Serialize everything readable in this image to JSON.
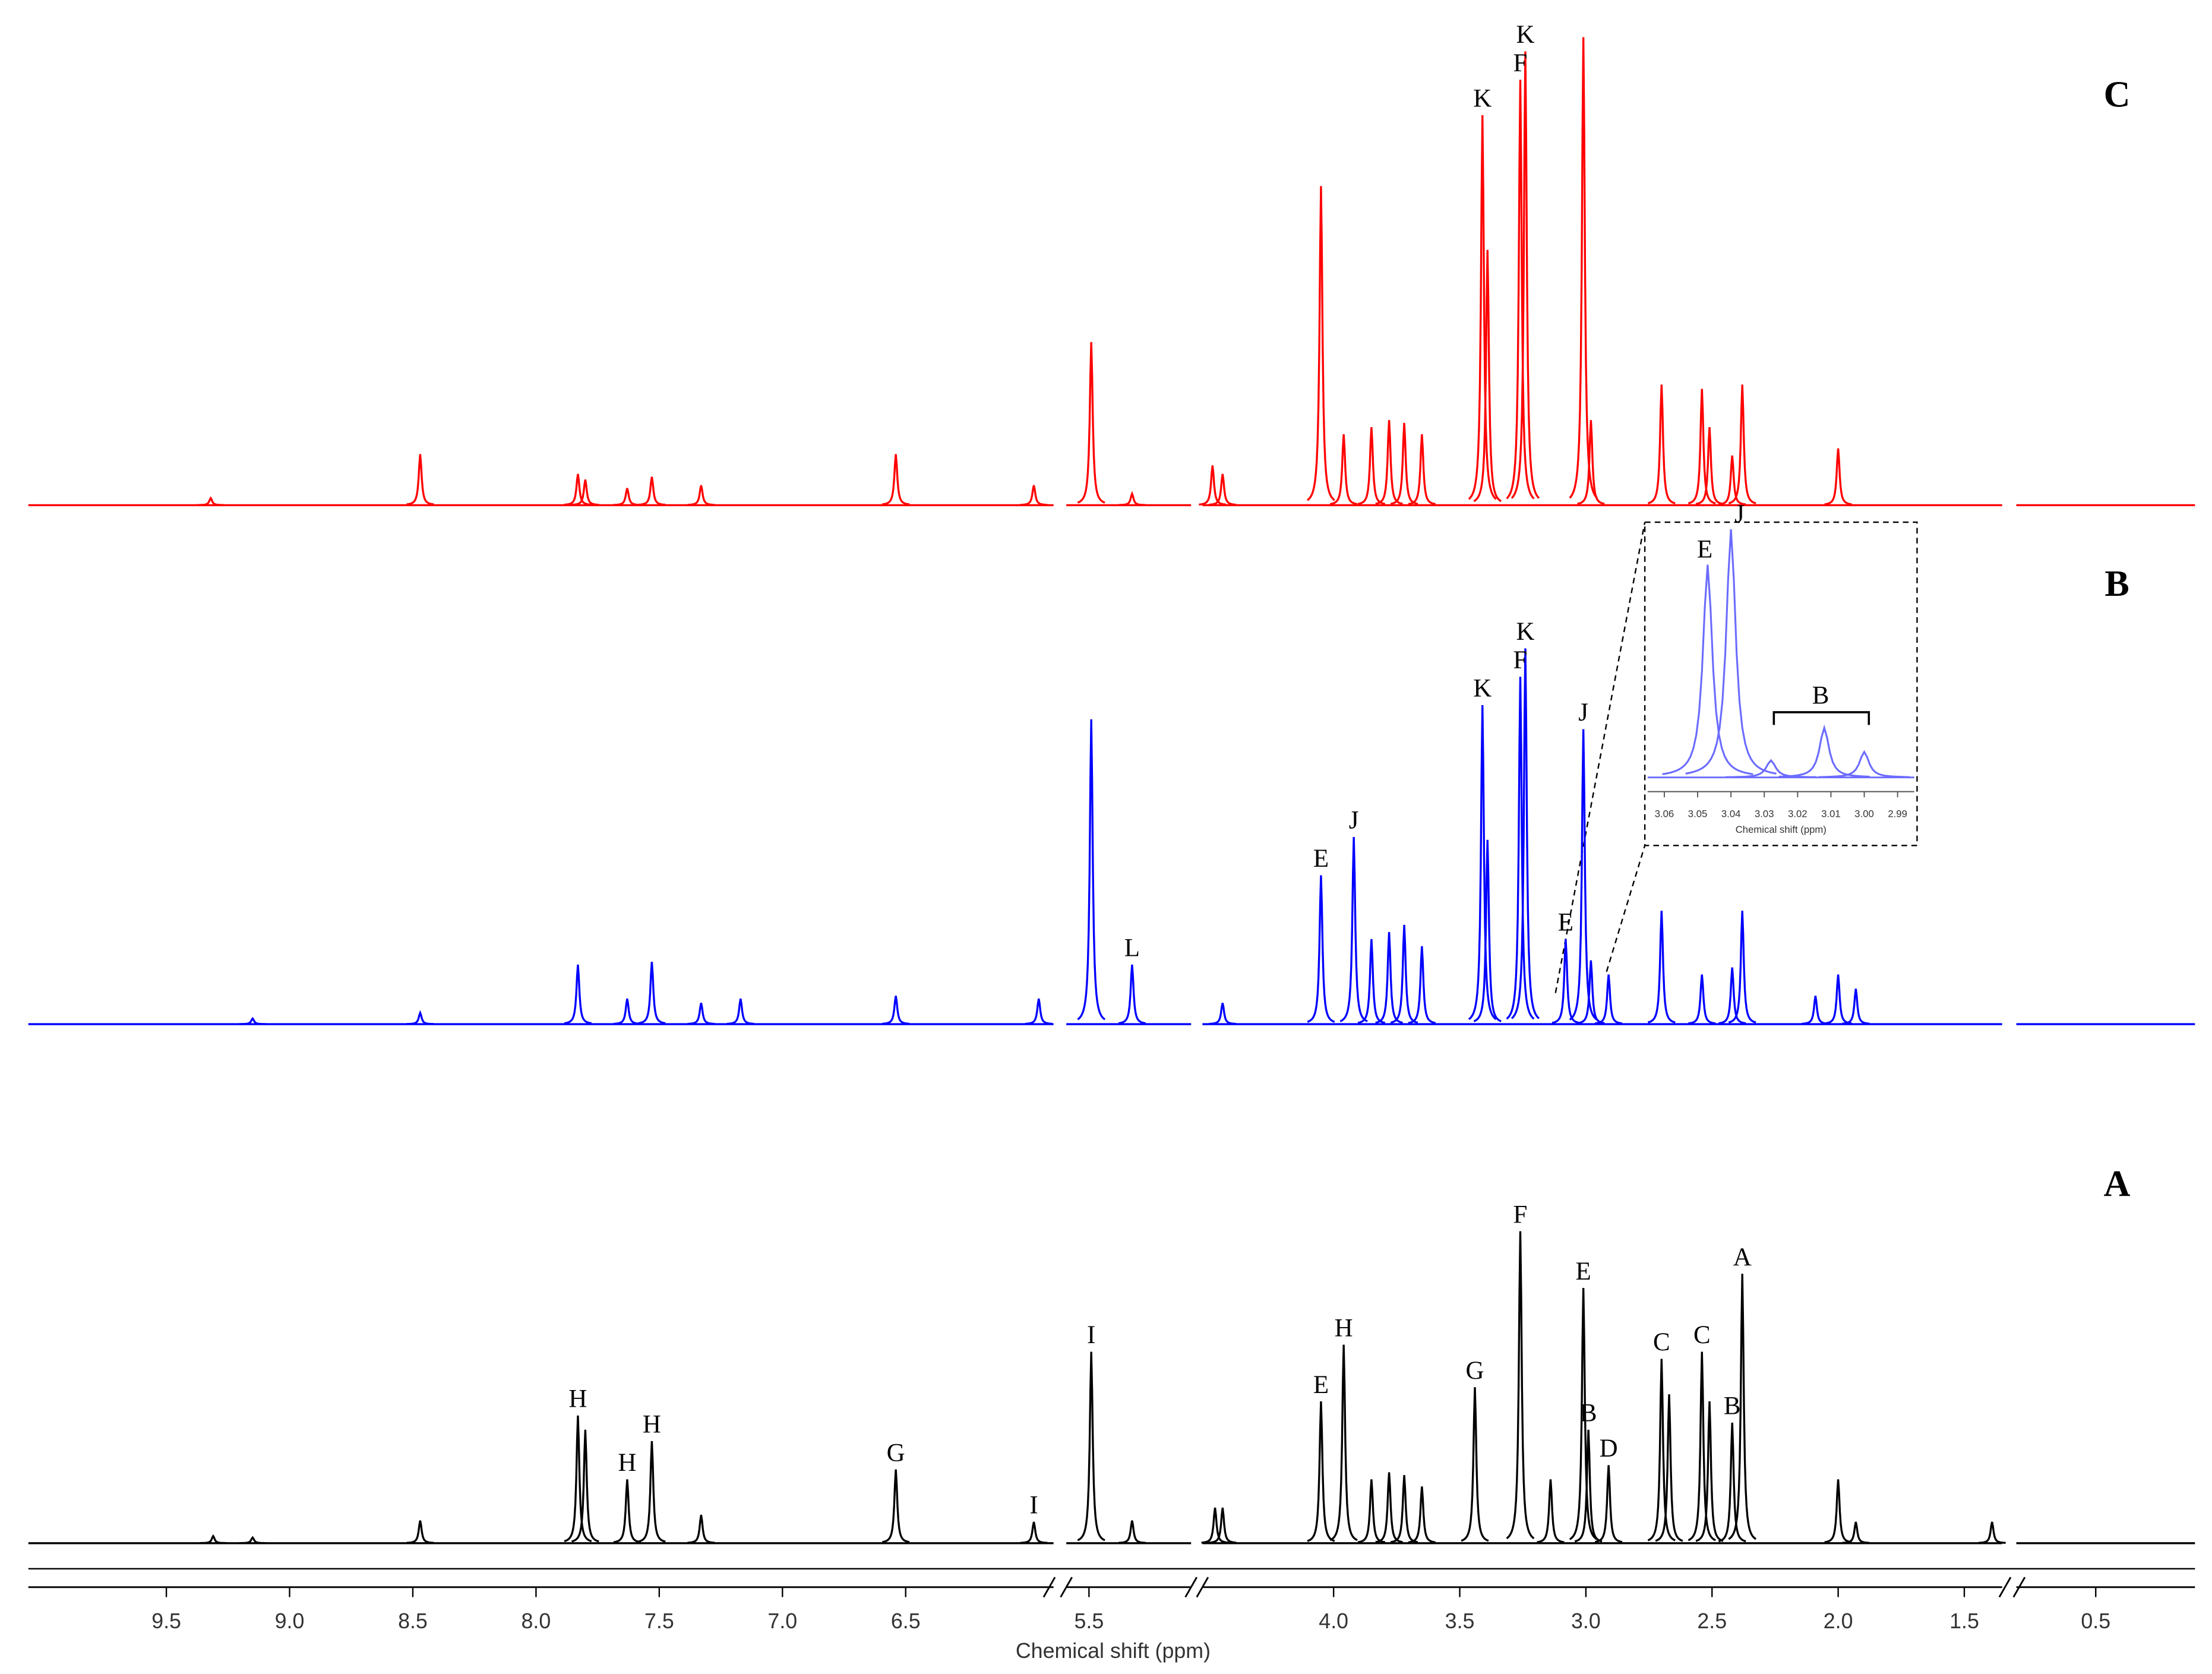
{
  "chart_data": {
    "type": "nmr",
    "xlabel": "Chemical shift (ppm)",
    "segments": [
      {
        "xlim": [
          10.06,
          5.9
        ],
        "xticks": [
          9.5,
          {
            "value": 9,
            "label": "9.0"
          },
          8.5,
          {
            "value": 8,
            "label": "8.0"
          },
          7.5,
          {
            "value": 7,
            "label": "7.0"
          },
          6.5
        ]
      },
      {
        "xlim": [
          5.6,
          5.05
        ],
        "xticks": [
          5.5
        ]
      },
      {
        "xlim": [
          4.52,
          1.35
        ],
        "xticks": [
          {
            "value": 4,
            "label": "4.0"
          },
          3.5,
          {
            "value": 3,
            "label": "3.0"
          },
          2.5,
          {
            "value": 2,
            "label": "2.0"
          },
          1.5
        ]
      },
      {
        "xlim": [
          0.82,
          0.1
        ],
        "xticks": [
          0.5
        ]
      }
    ],
    "series": [
      {
        "name": "A",
        "color": "#000000",
        "x": [
          9.31,
          9.15,
          8.47,
          7.83,
          7.8,
          7.63,
          7.53,
          7.33,
          6.54,
          5.98,
          5.49,
          5.31,
          4.47,
          4.44,
          4.05,
          3.96,
          3.85,
          3.78,
          3.72,
          3.65,
          3.44,
          3.26,
          3.14,
          3.01,
          2.99,
          2.91,
          2.7,
          2.67,
          2.54,
          2.51,
          2.42,
          2.38,
          2.0,
          1.93,
          1.39
        ],
        "values": [
          5,
          4,
          16,
          90,
          80,
          45,
          72,
          20,
          52,
          15,
          135,
          16,
          25,
          25,
          100,
          140,
          45,
          50,
          48,
          40,
          110,
          220,
          45,
          180,
          80,
          55,
          130,
          105,
          135,
          100,
          85,
          190,
          45,
          15,
          15
        ],
        "peak_labels": [
          null,
          null,
          null,
          "H",
          null,
          "H",
          "H",
          null,
          "G",
          "I",
          "I",
          null,
          null,
          null,
          "E",
          "H",
          null,
          null,
          null,
          null,
          "G",
          "F",
          null,
          "E",
          "B",
          "D",
          "C",
          null,
          "C",
          null,
          "B",
          "A",
          null,
          null,
          null
        ]
      },
      {
        "name": "B",
        "color": "#0000ff",
        "x": [
          9.15,
          8.47,
          7.83,
          7.63,
          7.53,
          7.33,
          7.17,
          6.54,
          5.96,
          5.49,
          5.31,
          4.44,
          4.05,
          3.92,
          3.85,
          3.78,
          3.72,
          3.65,
          3.41,
          3.39,
          3.26,
          3.24,
          3.08,
          3.01,
          2.98,
          2.91,
          2.7,
          2.54,
          2.42,
          2.38,
          2.09,
          2.0,
          1.93
        ],
        "values": [
          4,
          8,
          42,
          18,
          44,
          15,
          18,
          20,
          18,
          215,
          42,
          15,
          105,
          132,
          60,
          65,
          70,
          55,
          225,
          130,
          245,
          265,
          60,
          208,
          45,
          35,
          80,
          35,
          40,
          80,
          20,
          35,
          25
        ],
        "peak_labels": [
          null,
          null,
          null,
          null,
          null,
          null,
          null,
          null,
          null,
          null,
          "L",
          null,
          "E",
          "J",
          null,
          null,
          null,
          null,
          "K",
          null,
          "F",
          "K",
          "E",
          "J",
          null,
          null,
          null,
          null,
          null,
          null,
          null,
          null,
          null
        ]
      },
      {
        "name": "C",
        "color": "#ff0000",
        "x": [
          9.32,
          8.47,
          7.83,
          7.8,
          7.63,
          7.53,
          7.33,
          6.54,
          5.98,
          5.49,
          5.31,
          4.48,
          4.44,
          4.05,
          3.96,
          3.85,
          3.78,
          3.72,
          3.65,
          3.41,
          3.39,
          3.26,
          3.24,
          3.01,
          2.98,
          2.7,
          2.54,
          2.51,
          2.42,
          2.38,
          2.0
        ],
        "values": [
          5,
          36,
          22,
          18,
          12,
          20,
          14,
          36,
          14,
          115,
          8,
          28,
          22,
          225,
          50,
          55,
          60,
          58,
          50,
          275,
          180,
          300,
          320,
          330,
          60,
          85,
          82,
          55,
          35,
          85,
          40
        ],
        "peak_labels": [
          null,
          null,
          null,
          null,
          null,
          null,
          null,
          null,
          null,
          null,
          null,
          null,
          null,
          null,
          null,
          null,
          null,
          null,
          null,
          "K",
          null,
          "F",
          "K",
          null,
          null,
          null,
          null,
          null,
          null,
          null,
          null
        ]
      }
    ],
    "inset": {
      "color": "#6b6bff",
      "xlabel": "Chemical shift (ppm)",
      "xlim": [
        3.065,
        2.985
      ],
      "xticks": [
        3.06,
        3.05,
        3.04,
        3.03,
        3.02,
        3.01,
        {
          "value": 3,
          "label": "3.00"
        },
        2.99
      ],
      "x": [
        3.047,
        3.04,
        3.028,
        3.012,
        3.0
      ],
      "values": [
        150,
        175,
        12,
        35,
        18
      ],
      "peak_labels": [
        "E",
        "J",
        null,
        null,
        null
      ],
      "bracket_label": "B"
    }
  }
}
